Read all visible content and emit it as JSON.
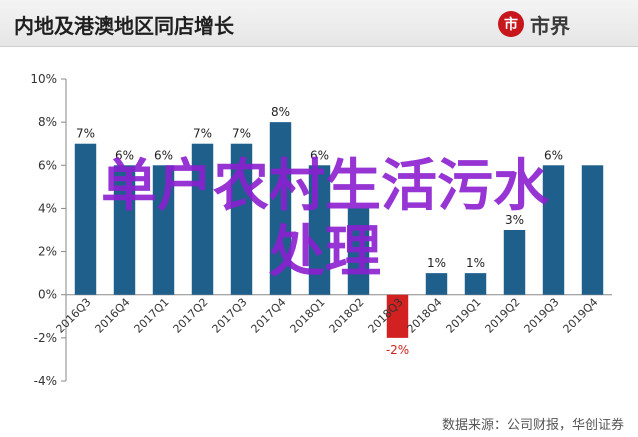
{
  "header": {
    "title": "内地及港澳地区同店增长",
    "logo_icon": "市",
    "logo_text": "市界"
  },
  "overlay": {
    "line1": "单户农村生活污水",
    "line2": "处理"
  },
  "source": "数据来源：公司财报，华创证券",
  "colors": {
    "bar": "#1f5f8b",
    "bar_negative": "#d32020",
    "overlay": "#8b1fd0",
    "logo": "#c8161d"
  },
  "chart_data": {
    "type": "bar",
    "categories": [
      "2016Q3",
      "2016Q4",
      "2017Q1",
      "2017Q2",
      "2017Q3",
      "2017Q4",
      "2018Q1",
      "2018Q2",
      "2018Q3",
      "2018Q4",
      "2019Q1",
      "2019Q2",
      "2019Q3",
      "2019Q4"
    ],
    "values": [
      7,
      6,
      6,
      7,
      7,
      8,
      6,
      4,
      -2,
      1,
      1,
      3,
      6,
      6
    ],
    "data_labels": [
      "7%",
      "6%",
      "6%",
      "7%",
      "7%",
      "8%",
      "6%",
      "",
      "-2%",
      "1%",
      "1%",
      "3%",
      "6%",
      ""
    ],
    "ylim": [
      -4,
      10
    ],
    "yticks": [
      -4,
      -2,
      0,
      2,
      4,
      6,
      8,
      10
    ],
    "ytick_labels": [
      "-4%",
      "-2%",
      "0%",
      "2%",
      "4%",
      "6%",
      "8%",
      "10%"
    ],
    "grid": false,
    "legend": "none"
  }
}
